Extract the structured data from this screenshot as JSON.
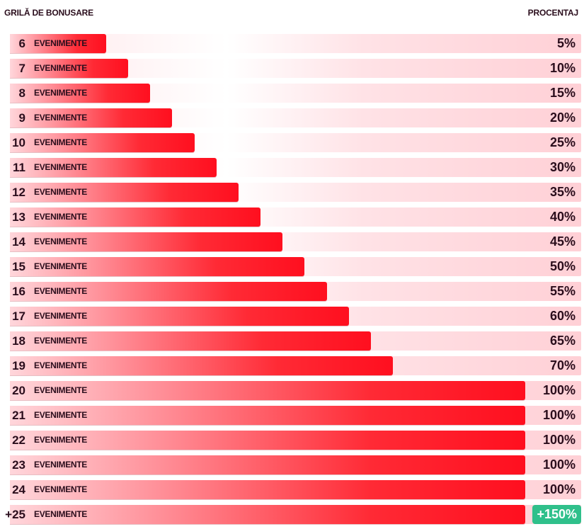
{
  "header": {
    "left": "GRILĂ DE BONUSARE",
    "right": "PROCENTAJ"
  },
  "colors": {
    "bar": "#ff0f1f",
    "row_bg": "#ffe2e6",
    "text": "#2a0d1c",
    "badge": "#2fc08b"
  },
  "chart_data": {
    "type": "bar",
    "orientation": "horizontal",
    "categories": [
      "6",
      "7",
      "8",
      "9",
      "10",
      "11",
      "12",
      "13",
      "14",
      "15",
      "16",
      "17",
      "18",
      "19",
      "20",
      "21",
      "22",
      "23",
      "24",
      "+25"
    ],
    "category_suffix": "EVENIMENTE",
    "values": [
      5,
      10,
      15,
      20,
      25,
      30,
      35,
      40,
      45,
      50,
      55,
      60,
      65,
      70,
      100,
      100,
      100,
      100,
      100,
      150
    ],
    "value_labels": [
      "5%",
      "10%",
      "15%",
      "20%",
      "25%",
      "30%",
      "35%",
      "40%",
      "45%",
      "50%",
      "55%",
      "60%",
      "65%",
      "70%",
      "100%",
      "100%",
      "100%",
      "100%",
      "100%",
      "+150%"
    ],
    "highlight": "+150%"
  }
}
